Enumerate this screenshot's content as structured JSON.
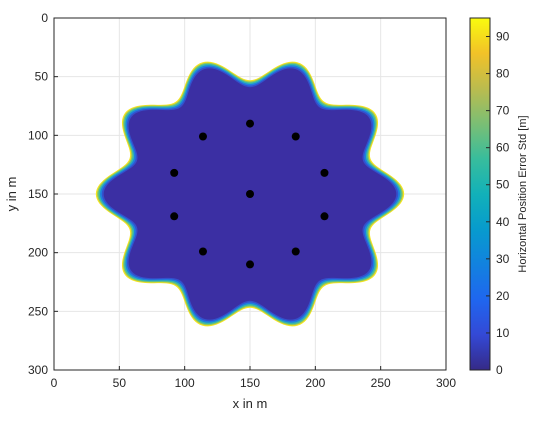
{
  "chart_data": {
    "type": "heatmap",
    "title": "",
    "xlabel": "x in m",
    "ylabel": "y in m",
    "xlim": [
      0,
      300
    ],
    "ylim": [
      0,
      300
    ],
    "y_axis_direction": "reversed",
    "xticks": [
      "0",
      "50",
      "100",
      "150",
      "200",
      "250",
      "300"
    ],
    "yticks": [
      "0",
      "50",
      "100",
      "150",
      "200",
      "250",
      "300"
    ],
    "grid": true,
    "colorbar": {
      "label": "Horizontal Position Error Std [m]",
      "range": [
        0,
        95
      ],
      "ticks": [
        "0",
        "10",
        "20",
        "30",
        "40",
        "50",
        "60",
        "70",
        "80",
        "90"
      ],
      "colormap": "parula"
    },
    "coverage_region": {
      "shape": "ten-lobed star",
      "center": [
        150,
        150
      ],
      "lobe_count": 10,
      "outer_radius": 118,
      "inner_radius": 97,
      "interior_value": 4,
      "edge_values": [
        25,
        50,
        90
      ]
    },
    "anchors": {
      "x": [
        150,
        114,
        185,
        92,
        207,
        150,
        92,
        207,
        114,
        185,
        150
      ],
      "y": [
        90,
        101,
        101,
        132,
        132,
        150,
        169,
        169,
        199,
        199,
        210
      ]
    }
  },
  "colors": {
    "interior": "#3b2fa3",
    "edge_cyan": "#35b8ac",
    "edge_yellow": "#f4e41f",
    "anchor": "#000000",
    "grid": "#e6e6e6",
    "axis": "#262626"
  }
}
